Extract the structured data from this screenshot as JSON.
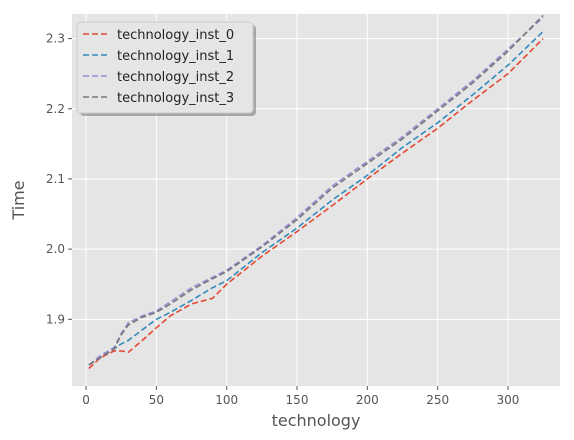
{
  "chart_data": {
    "type": "line",
    "xlabel": "technology",
    "ylabel": "Time",
    "xlim": [
      -10,
      337
    ],
    "ylim": [
      1.805,
      2.335
    ],
    "x_ticks": [
      0,
      50,
      100,
      150,
      200,
      250,
      300
    ],
    "y_ticks": [
      1.9,
      2.0,
      2.1,
      2.2,
      2.3
    ],
    "x_tick_labels": [
      "0",
      "50",
      "100",
      "150",
      "200",
      "250",
      "300"
    ],
    "y_tick_labels": [
      "1.9",
      "2.0",
      "2.1",
      "2.2",
      "2.3"
    ],
    "grid": true,
    "legend_position": "top-left",
    "line_style": "dashed",
    "x": [
      2,
      10,
      20,
      25,
      30,
      40,
      50,
      60,
      75,
      90,
      100,
      125,
      150,
      175,
      200,
      225,
      250,
      275,
      300,
      325
    ],
    "series": [
      {
        "name": "technology_inst_0",
        "color": "#E24A33",
        "values": [
          1.83,
          1.845,
          1.855,
          1.855,
          1.853,
          1.87,
          1.888,
          1.905,
          1.922,
          1.93,
          1.95,
          1.99,
          2.025,
          2.062,
          2.1,
          2.137,
          2.172,
          2.212,
          2.25,
          2.3
        ]
      },
      {
        "name": "technology_inst_1",
        "color": "#348ABD",
        "values": [
          1.835,
          1.846,
          1.858,
          1.865,
          1.87,
          1.885,
          1.9,
          1.91,
          1.927,
          1.945,
          1.955,
          1.995,
          2.03,
          2.07,
          2.105,
          2.145,
          2.18,
          2.22,
          2.262,
          2.31
        ]
      },
      {
        "name": "technology_inst_2",
        "color": "#988ED5",
        "values": [
          1.835,
          1.848,
          1.86,
          1.88,
          1.895,
          1.905,
          1.912,
          1.925,
          1.945,
          1.96,
          1.97,
          2.005,
          2.045,
          2.09,
          2.125,
          2.16,
          2.2,
          2.24,
          2.285,
          2.33
        ]
      },
      {
        "name": "technology_inst_3",
        "color": "#777777",
        "values": [
          1.835,
          1.845,
          1.858,
          1.878,
          1.892,
          1.903,
          1.91,
          1.922,
          1.942,
          1.958,
          1.968,
          2.003,
          2.042,
          2.087,
          2.122,
          2.157,
          2.197,
          2.237,
          2.282,
          2.333
        ]
      }
    ]
  }
}
